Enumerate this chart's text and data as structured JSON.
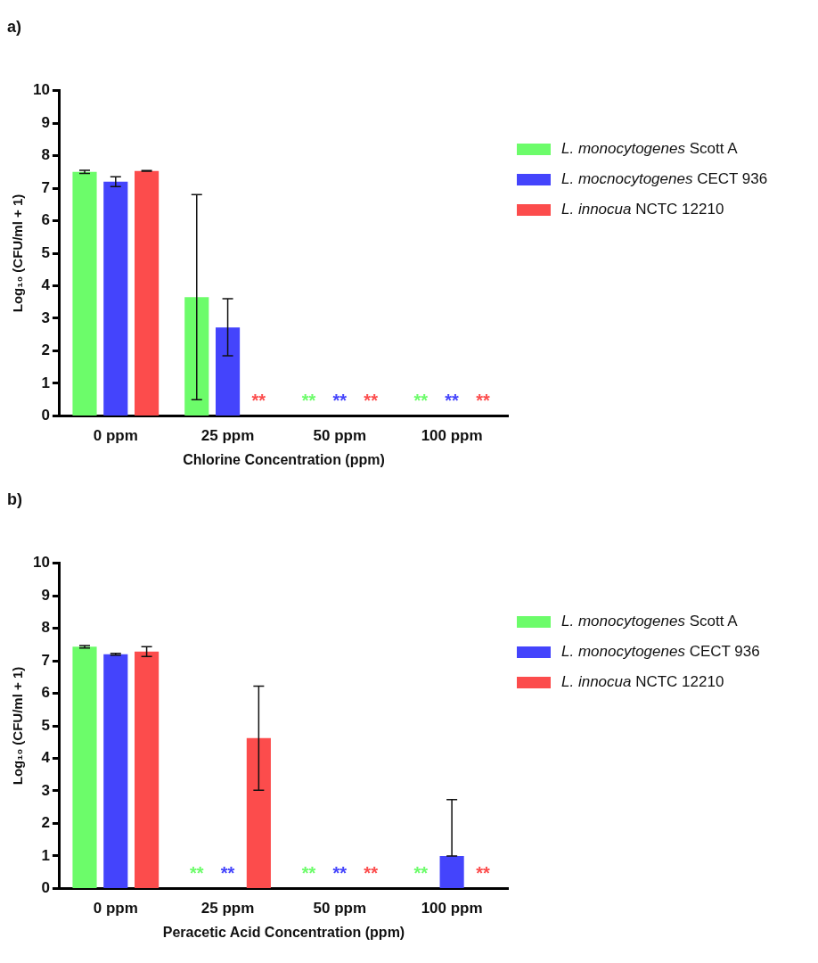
{
  "chart_data": [
    {
      "type": "bar",
      "title": "a)",
      "xlabel": "Chlorine Concentration (ppm)",
      "ylabel": "Log₁₀ (CFU/ml + 1)",
      "categories": [
        "0 ppm",
        "25 ppm",
        "50 ppm",
        "100 ppm"
      ],
      "ylim": [
        0,
        10
      ],
      "yticks": [
        0,
        1,
        2,
        3,
        4,
        5,
        6,
        7,
        8,
        9,
        10
      ],
      "legend": "right",
      "grid": false,
      "series": [
        {
          "name": "L. monocytogenes Scott A",
          "color": "#6cfc6a",
          "values": [
            7.5,
            3.65,
            null,
            null
          ],
          "errors": [
            [
              7.45,
              7.55
            ],
            [
              0.5,
              6.8
            ],
            null,
            null
          ],
          "value_labels": [
            null,
            null,
            "**",
            "**"
          ]
        },
        {
          "name": "L. mocnocytogenes CECT 936",
          "color": "#4444fc",
          "values": [
            7.2,
            2.72,
            null,
            null
          ],
          "errors": [
            [
              7.05,
              7.35
            ],
            [
              1.85,
              3.6
            ],
            null,
            null
          ],
          "value_labels": [
            null,
            null,
            "**",
            "**"
          ]
        },
        {
          "name": "L. innocua NCTC 12210",
          "color": "#fc4c4c",
          "values": [
            7.53,
            null,
            null,
            null
          ],
          "errors": [
            [
              7.52,
              7.54
            ],
            null,
            null,
            null
          ],
          "value_labels": [
            null,
            "**",
            "**",
            "**"
          ]
        }
      ]
    },
    {
      "type": "bar",
      "title": "b)",
      "xlabel": "Peracetic Acid Concentration (ppm)",
      "ylabel": "Log₁₀ (CFU/ml + 1)",
      "categories": [
        "0 ppm",
        "25 ppm",
        "50 ppm",
        "100 ppm"
      ],
      "ylim": [
        0,
        10
      ],
      "yticks": [
        0,
        1,
        2,
        3,
        4,
        5,
        6,
        7,
        8,
        9,
        10
      ],
      "legend": "right",
      "grid": false,
      "series": [
        {
          "name": "L. monocytogenes Scott A",
          "color": "#6cfc6a",
          "values": [
            7.43,
            null,
            null,
            null
          ],
          "errors": [
            [
              7.39,
              7.47
            ],
            null,
            null,
            null
          ],
          "value_labels": [
            null,
            "**",
            "**",
            "**"
          ]
        },
        {
          "name": "L. monocytogenes CECT 936",
          "color": "#4444fc",
          "values": [
            7.2,
            null,
            null,
            1
          ],
          "errors": [
            [
              7.17,
              7.23
            ],
            null,
            null,
            [
              1,
              2.73
            ]
          ],
          "value_labels": [
            null,
            "**",
            "**",
            null
          ]
        },
        {
          "name": "L. innocua NCTC 12210",
          "color": "#fc4c4c",
          "values": [
            7.28,
            4.62,
            null,
            null
          ],
          "errors": [
            [
              7.13,
              7.43
            ],
            [
              3.02,
              6.22
            ],
            null,
            null
          ],
          "value_labels": [
            null,
            null,
            "**",
            "**"
          ]
        }
      ]
    }
  ]
}
